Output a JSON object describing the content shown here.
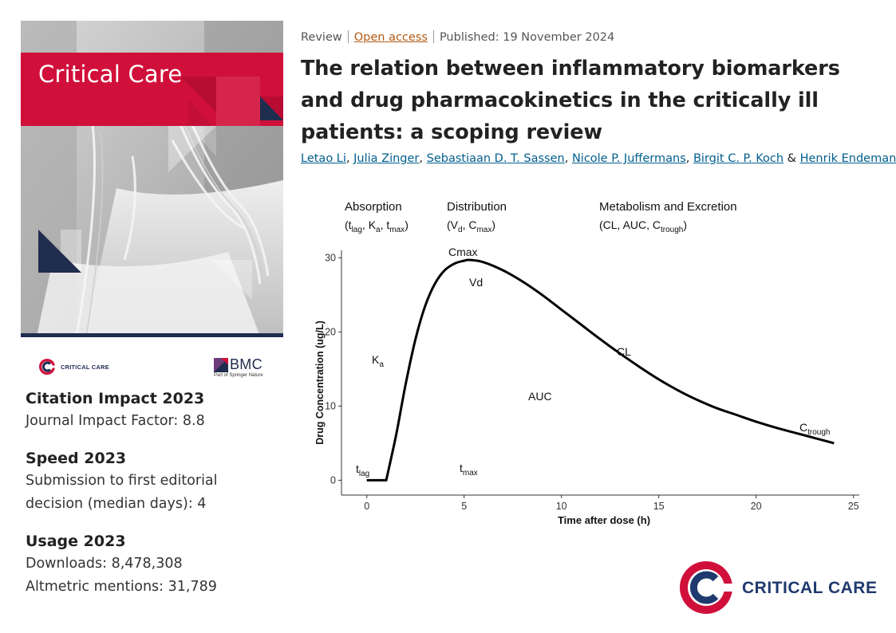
{
  "journal": {
    "cover_title": "Critical Care",
    "mini_logo_text": "CRITICAL CARE",
    "bmc_name": "BMC",
    "bmc_sub": "Part of Springer Nature",
    "brand_red": "#d0103a",
    "brand_navy": "#1f2d4e"
  },
  "stats": {
    "citation": {
      "heading": "Citation Impact 2023",
      "line1": "Journal Impact Factor: 8.8"
    },
    "speed": {
      "heading": "Speed 2023",
      "line1": "Submission to first editorial",
      "line2": "decision (median days): 4"
    },
    "usage": {
      "heading": "Usage 2023",
      "line1": "Downloads: 8,478,308",
      "line2": "Altmetric mentions: 31,789"
    }
  },
  "article": {
    "type": "Review",
    "access": "Open access",
    "published": "Published: 19 November 2024",
    "title": "The relation between inflammatory biomarkers and drug pharmacokinetics in the critically ill patients: a scoping review",
    "authors": [
      "Letao Li",
      "Julia Zinger",
      "Sebastiaan D. T. Sassen",
      "Nicole P. Juffermans",
      "Birgit C. P. Koch",
      "Henrik Endeman"
    ],
    "author_sep": ",",
    "last_sep": "&"
  },
  "chart_data": {
    "type": "line",
    "xlabel": "Time after dose (h)",
    "ylabel": "Drug Concentration (ug/L)",
    "xlim": [
      -1.3,
      25.3
    ],
    "ylim": [
      -2,
      31
    ],
    "xticks": [
      0,
      5,
      10,
      15,
      20,
      25
    ],
    "yticks": [
      0,
      10,
      20,
      30
    ],
    "series": [
      {
        "x": [
          0,
          1,
          1.5,
          2,
          2.5,
          3,
          3.5,
          4,
          4.5,
          5,
          5.3,
          6,
          7,
          8,
          9,
          10,
          11,
          12,
          13,
          14,
          15,
          16,
          17,
          18,
          19,
          20,
          21,
          22,
          23,
          24
        ],
        "y": [
          0,
          0,
          6,
          13,
          19,
          23.5,
          26.5,
          28.3,
          29.2,
          29.6,
          29.7,
          29.4,
          28.3,
          26.8,
          25.0,
          23.0,
          21.0,
          19.0,
          17.1,
          15.3,
          13.6,
          12.1,
          10.8,
          9.7,
          8.8,
          7.9,
          7.1,
          6.4,
          5.7,
          5.0
        ]
      }
    ],
    "phases": {
      "absorption": {
        "title": "Absorption",
        "params": [
          "t",
          "lag",
          ", K",
          "a",
          ", t",
          "max",
          ")"
        ],
        "open": "("
      },
      "distribution": {
        "title": "Distribution",
        "open": "(V",
        "sub1": "d",
        "mid": ", C",
        "sub2": "max",
        "close": ")"
      },
      "metabolism": {
        "title": "Metabolism and Excretion",
        "open": "(CL, AUC, C",
        "sub": "trough",
        "close": ")"
      }
    },
    "annotations": {
      "cmax": "Cmax",
      "vd": "Vd",
      "ka_main": "K",
      "ka_sub": "a",
      "auc": "AUC",
      "cl": "CL",
      "ctrough_main": "C",
      "ctrough_sub": "trough",
      "tlag_main": "t",
      "tlag_sub": "lag",
      "tmax_main": "t",
      "tmax_sub": "max"
    }
  },
  "footer_logo": {
    "text": "CRITICAL CARE"
  }
}
